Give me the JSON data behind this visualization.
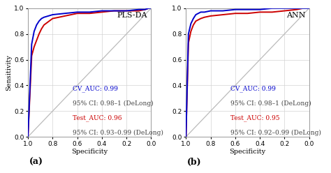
{
  "panels": [
    {
      "title": "PLS-DA",
      "label": "(a)",
      "cv_color": "#0000CC",
      "test_color": "#CC0000",
      "diag_color": "#BBBBBB",
      "cv_auc": "0.99",
      "cv_ci": "0.98–1 (DeLong)",
      "test_auc": "0.96",
      "test_ci": "0.93–0.99 (DeLong)",
      "cv_curve_x": [
        1.0,
        0.97,
        0.95,
        0.93,
        0.91,
        0.89,
        0.87,
        0.8,
        0.7,
        0.6,
        0.5,
        0.4,
        0.3,
        0.2,
        0.1,
        0.05,
        0.02,
        0.01,
        0.005,
        0.0
      ],
      "cv_curve_y": [
        0.0,
        0.72,
        0.82,
        0.87,
        0.9,
        0.92,
        0.93,
        0.95,
        0.96,
        0.97,
        0.97,
        0.98,
        0.98,
        0.98,
        0.99,
        0.99,
        1.0,
        1.0,
        1.0,
        1.0
      ],
      "test_curve_x": [
        1.0,
        0.97,
        0.95,
        0.93,
        0.91,
        0.89,
        0.87,
        0.8,
        0.7,
        0.6,
        0.5,
        0.4,
        0.3,
        0.2,
        0.1,
        0.05,
        0.02,
        0.01,
        0.005,
        0.0
      ],
      "test_curve_y": [
        0.0,
        0.63,
        0.7,
        0.75,
        0.8,
        0.84,
        0.87,
        0.92,
        0.94,
        0.96,
        0.96,
        0.97,
        0.98,
        0.98,
        0.98,
        0.99,
        1.0,
        1.0,
        1.0,
        1.0
      ]
    },
    {
      "title": "ANN",
      "label": "(b)",
      "cv_color": "#0000CC",
      "test_color": "#CC0000",
      "diag_color": "#BBBBBB",
      "cv_auc": "0.99",
      "cv_ci": "0.98–1 (DeLong)",
      "test_auc": "0.95",
      "test_ci": "0.92–0.99 (DeLong)",
      "cv_curve_x": [
        1.0,
        0.98,
        0.96,
        0.94,
        0.92,
        0.9,
        0.88,
        0.85,
        0.8,
        0.7,
        0.6,
        0.5,
        0.4,
        0.3,
        0.2,
        0.1,
        0.05,
        0.02,
        0.0
      ],
      "cv_curve_y": [
        0.0,
        0.8,
        0.88,
        0.92,
        0.95,
        0.96,
        0.97,
        0.97,
        0.98,
        0.98,
        0.99,
        0.99,
        0.99,
        1.0,
        1.0,
        1.0,
        1.0,
        1.0,
        1.0
      ],
      "test_curve_x": [
        1.0,
        0.98,
        0.96,
        0.94,
        0.92,
        0.9,
        0.88,
        0.85,
        0.8,
        0.7,
        0.6,
        0.5,
        0.4,
        0.3,
        0.2,
        0.1,
        0.05,
        0.02,
        0.0
      ],
      "test_curve_y": [
        0.0,
        0.73,
        0.82,
        0.87,
        0.9,
        0.91,
        0.92,
        0.93,
        0.94,
        0.95,
        0.96,
        0.96,
        0.97,
        0.97,
        0.98,
        0.99,
        1.0,
        1.0,
        1.0
      ]
    }
  ],
  "bg_color": "#FFFFFF",
  "grid_color": "#D3D3D3",
  "text_color": "#000000",
  "annot_ci_color": "#444444",
  "fontsize_title": 8,
  "fontsize_axis_label": 7,
  "fontsize_tick": 6.5,
  "fontsize_annot": 6.5,
  "fontsize_panel_label": 9,
  "xlabel": "Specificity",
  "ylabel": "Sensitivity"
}
